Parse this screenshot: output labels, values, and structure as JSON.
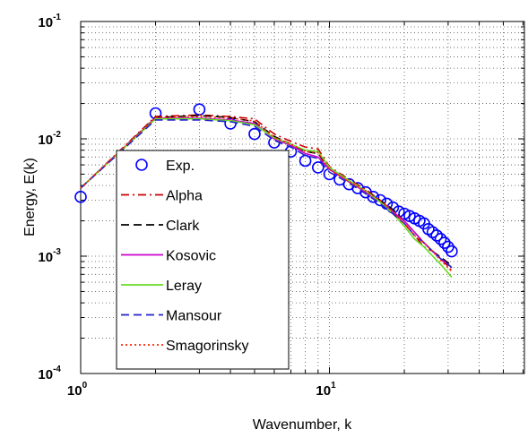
{
  "chart_data": {
    "type": "line",
    "xlabel": "Wavenumber, k",
    "ylabel": "Energy, E(k)",
    "x_scale": "log",
    "y_scale": "log",
    "xlim": [
      1,
      60
    ],
    "ylim": [
      0.0001,
      0.1
    ],
    "grid": true,
    "x_ticks": [
      {
        "base": "10",
        "exp": "0"
      },
      {
        "base": "10",
        "exp": "1"
      }
    ],
    "y_ticks": [
      {
        "base": "10",
        "exp": "-1"
      },
      {
        "base": "10",
        "exp": "-2"
      },
      {
        "base": "10",
        "exp": "-3"
      },
      {
        "base": "10",
        "exp": "-4"
      }
    ],
    "legend_position": "lower-left",
    "series": [
      {
        "name": "Exp.",
        "color": "#0000ff",
        "style": "circle",
        "x": [
          1,
          2,
          3,
          4,
          5,
          6,
          7,
          8,
          9,
          10,
          11,
          12,
          13,
          14,
          15,
          16,
          17,
          18,
          19,
          20,
          21,
          22,
          23,
          24,
          25,
          26,
          27,
          28,
          29,
          30,
          31
        ],
        "y": [
          0.0032,
          0.0165,
          0.0178,
          0.0135,
          0.011,
          0.0093,
          0.0078,
          0.0065,
          0.0057,
          0.005,
          0.0045,
          0.0041,
          0.0038,
          0.0035,
          0.0032,
          0.003,
          0.0028,
          0.0026,
          0.0024,
          0.0023,
          0.0022,
          0.0021,
          0.002,
          0.0019,
          0.0017,
          0.0016,
          0.0015,
          0.0014,
          0.0013,
          0.0012,
          0.0011
        ]
      },
      {
        "name": "Alpha",
        "color": "#cc0000",
        "style": "dashdot",
        "x": [
          1,
          2,
          3,
          4,
          5,
          6,
          7,
          8,
          9,
          10,
          12,
          14,
          16,
          18,
          20,
          22,
          24,
          26,
          28,
          30,
          31
        ],
        "y": [
          0.0038,
          0.0155,
          0.016,
          0.0155,
          0.0148,
          0.011,
          0.0095,
          0.0085,
          0.0082,
          0.0058,
          0.0045,
          0.0037,
          0.003,
          0.0024,
          0.0019,
          0.0015,
          0.0012,
          0.0011,
          0.00095,
          0.00082,
          0.00075
        ]
      },
      {
        "name": "Clark",
        "color": "#000000",
        "style": "dash",
        "x": [
          1,
          2,
          3,
          4,
          5,
          6,
          7,
          8,
          9,
          10,
          12,
          14,
          16,
          18,
          20,
          22,
          24,
          26,
          28,
          30,
          31
        ],
        "y": [
          0.0038,
          0.0152,
          0.0158,
          0.0152,
          0.014,
          0.0105,
          0.009,
          0.0078,
          0.0075,
          0.0055,
          0.0043,
          0.0036,
          0.003,
          0.0025,
          0.002,
          0.0016,
          0.0013,
          0.0011,
          0.00098,
          0.00088,
          0.00082
        ]
      },
      {
        "name": "Kosovic",
        "color": "#cc00cc",
        "style": "solid",
        "x": [
          1,
          2,
          3,
          4,
          5,
          6,
          7,
          8,
          9,
          10,
          12,
          14,
          16,
          18,
          20,
          22,
          24,
          26,
          28,
          30,
          31
        ],
        "y": [
          0.0038,
          0.015,
          0.015,
          0.0145,
          0.0135,
          0.01,
          0.0088,
          0.0075,
          0.007,
          0.0055,
          0.0043,
          0.0035,
          0.0029,
          0.0024,
          0.002,
          0.0016,
          0.0013,
          0.0011,
          0.00095,
          0.00085,
          0.0008
        ]
      },
      {
        "name": "Leray",
        "color": "#66dd22",
        "style": "solid",
        "x": [
          1,
          2,
          3,
          4,
          5,
          6,
          7,
          8,
          9,
          10,
          12,
          14,
          16,
          18,
          20,
          22,
          24,
          26,
          28,
          30,
          31
        ],
        "y": [
          0.0038,
          0.0148,
          0.0148,
          0.0143,
          0.0132,
          0.0102,
          0.009,
          0.008,
          0.0078,
          0.0057,
          0.0044,
          0.0036,
          0.0029,
          0.0023,
          0.0018,
          0.0014,
          0.0012,
          0.001,
          0.00085,
          0.00072,
          0.00066
        ]
      },
      {
        "name": "Mansour",
        "color": "#2222cc",
        "style": "dash",
        "x": [
          1,
          2,
          3,
          4,
          5,
          6,
          7,
          8,
          9,
          10,
          12,
          14,
          16,
          18,
          20,
          22,
          24,
          26,
          28,
          30,
          31
        ],
        "y": [
          0.0038,
          0.0145,
          0.0145,
          0.014,
          0.0128,
          0.0097,
          0.0085,
          0.0072,
          0.0068,
          0.0052,
          0.0042,
          0.0034,
          0.0028,
          0.0023,
          0.0019,
          0.0015,
          0.0013,
          0.0011,
          0.00095,
          0.00085,
          0.0008
        ]
      },
      {
        "name": "Smagorinsky",
        "color": "#ff2200",
        "style": "dot",
        "x": [
          1,
          2,
          3,
          4,
          5,
          6,
          7,
          8,
          9,
          10,
          12,
          14,
          16,
          18,
          20,
          22,
          24,
          26,
          28,
          30,
          31
        ],
        "y": [
          0.0038,
          0.0152,
          0.0155,
          0.015,
          0.0142,
          0.0103,
          0.009,
          0.0078,
          0.0076,
          0.0055,
          0.0043,
          0.0036,
          0.003,
          0.0024,
          0.0019,
          0.0015,
          0.0013,
          0.0011,
          0.00092,
          0.0008,
          0.00074
        ]
      }
    ]
  }
}
